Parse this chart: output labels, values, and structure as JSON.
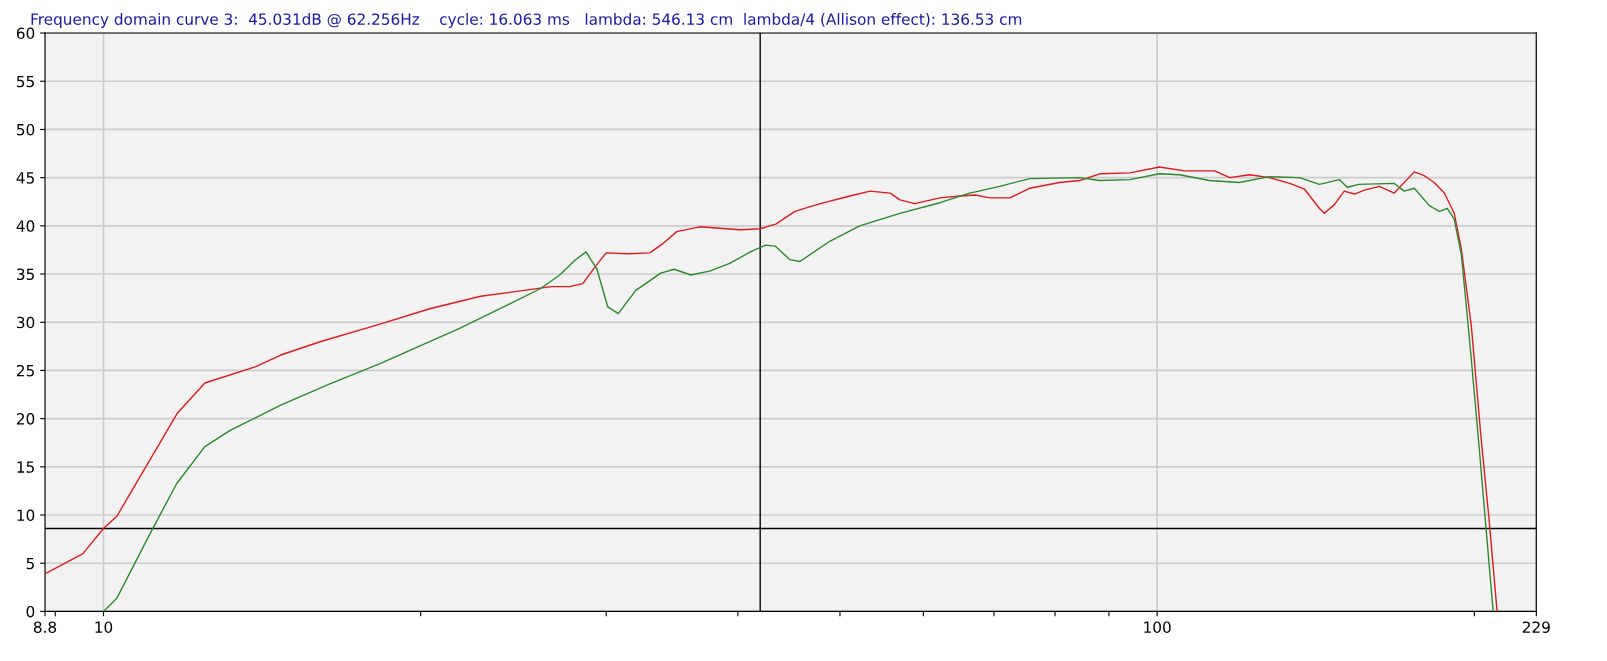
{
  "chart_data": {
    "type": "line",
    "title": "Frequency domain curve 3:  45.031dB @ 62.256Hz    cycle: 16.063 ms   lambda: 546.13 cm  lambda/4 (Allison effect): 136.53 cm",
    "log": "x",
    "xlim": [
      8.8,
      229
    ],
    "ylim": [
      0,
      60
    ],
    "xticks": [
      8.8,
      {
        "value": 9,
        "label": null
      },
      10,
      {
        "value": 20,
        "label": null
      },
      {
        "value": 30,
        "label": null
      },
      {
        "value": 40,
        "label": null
      },
      {
        "value": 50,
        "label": null
      },
      {
        "value": 60,
        "label": null
      },
      {
        "value": 70,
        "label": null
      },
      {
        "value": 80,
        "label": null
      },
      {
        "value": 90,
        "label": null
      },
      100,
      {
        "value": 200,
        "label": null
      },
      229
    ],
    "yticks": [
      0,
      5,
      10,
      15,
      20,
      25,
      30,
      35,
      40,
      45,
      50,
      55,
      60
    ],
    "grid": true,
    "legend": false,
    "marker": "none",
    "line_style": "solid",
    "ref_lines": [
      {
        "axis": "x",
        "value": 42.0,
        "color": "#000000"
      },
      {
        "axis": "y",
        "value": 8.6,
        "color": "#000000"
      }
    ],
    "series": [
      {
        "color": "#e0191e",
        "x": [
          8.8,
          9.56,
          10.0,
          10.3,
          11.74,
          12.48,
          13.95,
          14.73,
          16.08,
          18.3,
          20.4,
          22.8,
          24.3,
          26.6,
          27.7,
          28.5,
          29.4,
          30.0,
          31.5,
          33.0,
          33.9,
          35.0,
          36.8,
          40.2,
          42.0,
          43.5,
          45.3,
          47.9,
          51.1,
          53.4,
          55.8,
          57.0,
          58.9,
          62.2,
          65.0,
          67.2,
          69.4,
          72.5,
          75.7,
          80.8,
          84.4,
          88.2,
          94.2,
          100.5,
          106.2,
          113.4,
          117.2,
          122.4,
          127.8,
          133.6,
          138.0,
          142.6,
          144.1,
          147.3,
          150.5,
          153.9,
          157.3,
          162.5,
          167.9,
          175.4,
          179.3,
          183.2,
          187.3,
          191.4,
          194.4,
          198.7,
          203.0,
          206.6,
          210.2
        ],
        "values": [
          3.9,
          6.0,
          8.6,
          9.9,
          20.5,
          23.7,
          25.4,
          26.6,
          28.0,
          29.8,
          31.4,
          32.7,
          33.1,
          33.7,
          33.7,
          34.0,
          36.0,
          37.2,
          37.1,
          37.2,
          38.1,
          39.4,
          39.9,
          39.6,
          39.7,
          40.2,
          41.5,
          42.3,
          43.1,
          43.6,
          43.4,
          42.7,
          42.3,
          42.9,
          43.1,
          43.2,
          42.9,
          42.9,
          43.9,
          44.5,
          44.7,
          45.4,
          45.5,
          46.1,
          45.7,
          45.7,
          45.0,
          45.3,
          45.0,
          44.4,
          43.8,
          41.8,
          41.3,
          42.2,
          43.6,
          43.3,
          43.7,
          44.1,
          43.4,
          45.6,
          45.2,
          44.5,
          43.4,
          41.3,
          37.6,
          29.6,
          17.9,
          9.4,
          0
        ]
      },
      {
        "color": "#2a8a2a",
        "x": [
          10.0,
          10.3,
          11.1,
          11.74,
          12.48,
          13.2,
          13.95,
          14.73,
          16.4,
          18.3,
          21.8,
          24.3,
          26.0,
          27.1,
          28.0,
          28.7,
          29.4,
          30.1,
          30.8,
          32.0,
          33.8,
          34.8,
          36.1,
          37.6,
          39.3,
          41.1,
          42.5,
          43.4,
          44.8,
          45.8,
          48.9,
          52.2,
          57.0,
          62.2,
          66.4,
          70.9,
          75.7,
          84.4,
          88.2,
          94.2,
          100.5,
          105.0,
          112.1,
          119.7,
          127.8,
          136.5,
          142.6,
          148.9,
          151.5,
          155.4,
          167.9,
          171.6,
          175.4,
          181.3,
          185.3,
          188.5,
          191.4,
          194.4,
          197.8,
          202.2,
          205.3,
          208.4
        ],
        "values": [
          0,
          1.4,
          8.3,
          13.3,
          17.1,
          18.8,
          20.1,
          21.4,
          23.6,
          25.7,
          29.4,
          31.9,
          33.5,
          34.9,
          36.4,
          37.3,
          35.5,
          31.6,
          30.9,
          33.3,
          35.1,
          35.5,
          34.9,
          35.3,
          36.1,
          37.3,
          38.0,
          37.9,
          36.5,
          36.3,
          38.4,
          40.0,
          41.3,
          42.4,
          43.4,
          44.1,
          44.9,
          45.0,
          44.7,
          44.8,
          45.4,
          45.3,
          44.7,
          44.5,
          45.1,
          45.0,
          44.3,
          44.8,
          44.0,
          44.3,
          44.4,
          43.6,
          43.9,
          42.1,
          41.5,
          41.8,
          40.7,
          37.0,
          28.5,
          16.8,
          8.3,
          0
        ]
      }
    ]
  }
}
